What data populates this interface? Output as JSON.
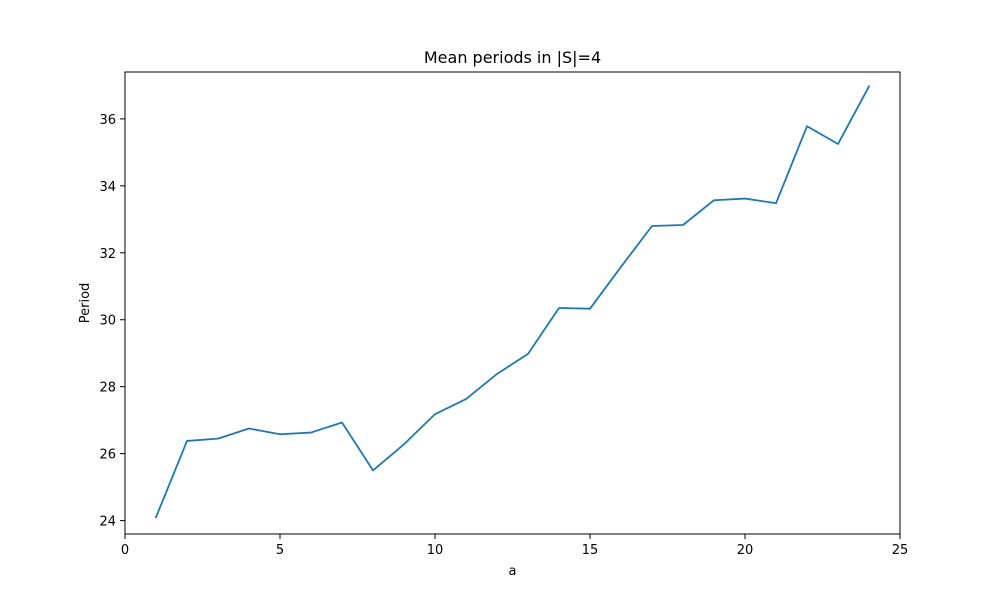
{
  "chart_data": {
    "type": "line",
    "title": "Mean periods in |S|=4",
    "xlabel": "a",
    "ylabel": "Period",
    "xlim": [
      0,
      25
    ],
    "ylim": [
      23.6,
      37.4
    ],
    "xticks": [
      0,
      5,
      10,
      15,
      20,
      25
    ],
    "yticks": [
      24,
      26,
      28,
      30,
      32,
      34,
      36
    ],
    "grid": false,
    "series": [
      {
        "color": "#1f77b4",
        "x": [
          1,
          2,
          3,
          4,
          5,
          6,
          7,
          8,
          9,
          10,
          11,
          12,
          13,
          14,
          15,
          16,
          17,
          18,
          19,
          20,
          21,
          22,
          23,
          24
        ],
        "values": [
          24.1,
          26.38,
          26.45,
          26.75,
          26.58,
          26.63,
          26.93,
          25.5,
          26.28,
          27.18,
          27.63,
          28.38,
          28.98,
          30.35,
          30.33,
          31.58,
          32.8,
          32.83,
          33.57,
          33.62,
          33.48,
          35.78,
          35.25,
          36.97
        ]
      }
    ]
  }
}
